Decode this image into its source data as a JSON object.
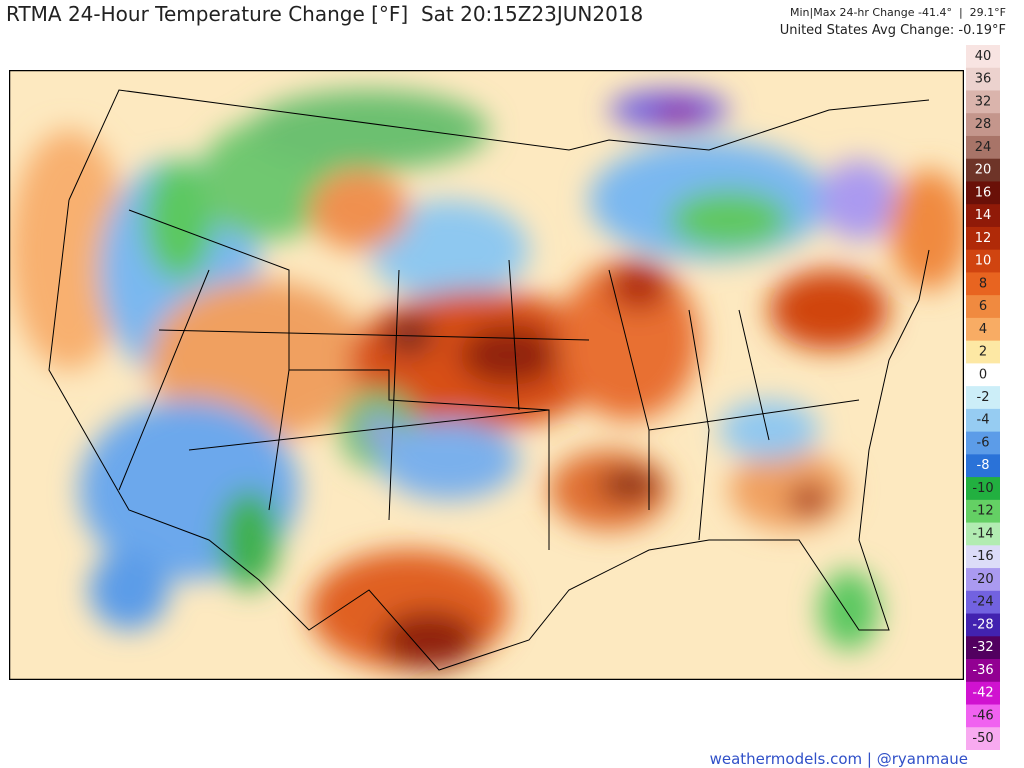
{
  "header": {
    "title": "RTMA 24-Hour Temperature Change [°F]  Sat 20:15Z23JUN2018",
    "minmax": "Min|Max 24-hr Change -41.4°  |  29.1°F",
    "avg": "United States Avg Change: -0.19°F"
  },
  "colorbar": {
    "labels": [
      "40",
      "36",
      "32",
      "28",
      "24",
      "20",
      "16",
      "14",
      "12",
      "10",
      "8",
      "6",
      "4",
      "2",
      "0",
      "-2",
      "-4",
      "-6",
      "-8",
      "-10",
      "-12",
      "-14",
      "-16",
      "-20",
      "-24",
      "-28",
      "-32",
      "-36",
      "-42",
      "-46",
      "-50"
    ],
    "colors": [
      "#f8e4e2",
      "#ecd2ce",
      "#dab4ac",
      "#c4968c",
      "#a87468",
      "#6e3428",
      "#6a1008",
      "#901a08",
      "#b02a08",
      "#d04410",
      "#e86420",
      "#f08a40",
      "#f8ac64",
      "#fde8a4",
      "#ffffff",
      "#cceef8",
      "#96ccf2",
      "#5c9ce8",
      "#2a72d8",
      "#22b040",
      "#64d064",
      "#b2ecb2",
      "#dcdcf8",
      "#aa9af0",
      "#7262e0",
      "#4222b0",
      "#520060",
      "#920092",
      "#d012d0",
      "#f062f0",
      "#f8aaf0"
    ]
  },
  "credit": "weathermodels.com | @ryanmaue"
}
